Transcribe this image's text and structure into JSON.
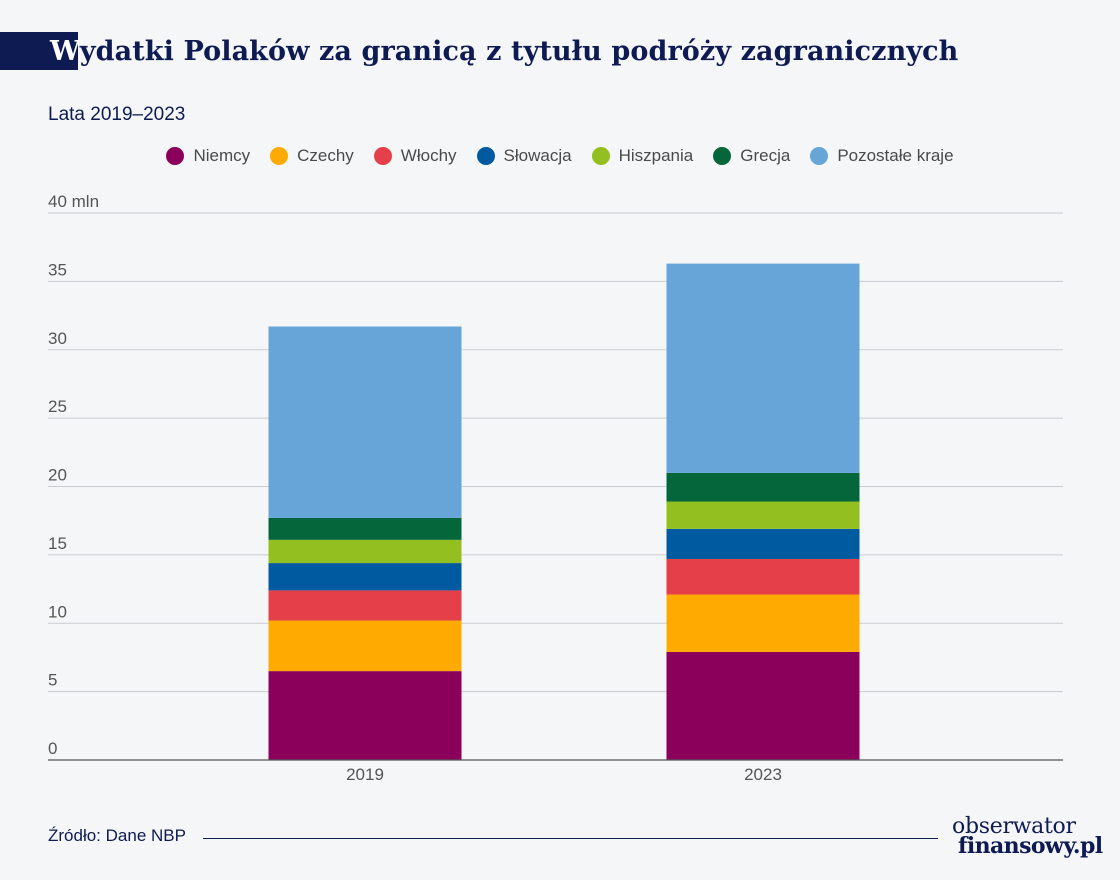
{
  "title_first": "W",
  "title_rest": "ydatki Polaków za granicą z tytułu podróży zagranicznych",
  "subtitle": "Lata 2019–2023",
  "footer": {
    "source": "Źródło: Dane NBP"
  },
  "logo": {
    "line1": "obserwator",
    "line2": "finansowy.pl"
  },
  "chart_data": {
    "type": "bar",
    "stacked": true,
    "categories": [
      "2019",
      "2023"
    ],
    "ylim": [
      0,
      40
    ],
    "y_ticks": [
      0,
      5,
      10,
      15,
      20,
      25,
      30,
      35,
      40
    ],
    "y_tick_labels": [
      "0",
      "5",
      "10",
      "15",
      "20",
      "25",
      "30",
      "35",
      "40 mln"
    ],
    "grid": true,
    "legend_position": "top",
    "series": [
      {
        "name": "Niemcy",
        "color": "#8b005b",
        "values": [
          6.5,
          7.9
        ]
      },
      {
        "name": "Czechy",
        "color": "#ffaa00",
        "values": [
          3.7,
          4.2
        ]
      },
      {
        "name": "Włochy",
        "color": "#e5404a",
        "values": [
          2.2,
          2.6
        ]
      },
      {
        "name": "Słowacja",
        "color": "#005aa0",
        "values": [
          2.0,
          2.2
        ]
      },
      {
        "name": "Hiszpania",
        "color": "#93c020",
        "values": [
          1.7,
          2.0
        ]
      },
      {
        "name": "Grecja",
        "color": "#04663a",
        "values": [
          1.6,
          2.1
        ]
      },
      {
        "name": "Pozostałe kraje",
        "color": "#67a4d8",
        "values": [
          14.0,
          15.3
        ]
      }
    ]
  }
}
